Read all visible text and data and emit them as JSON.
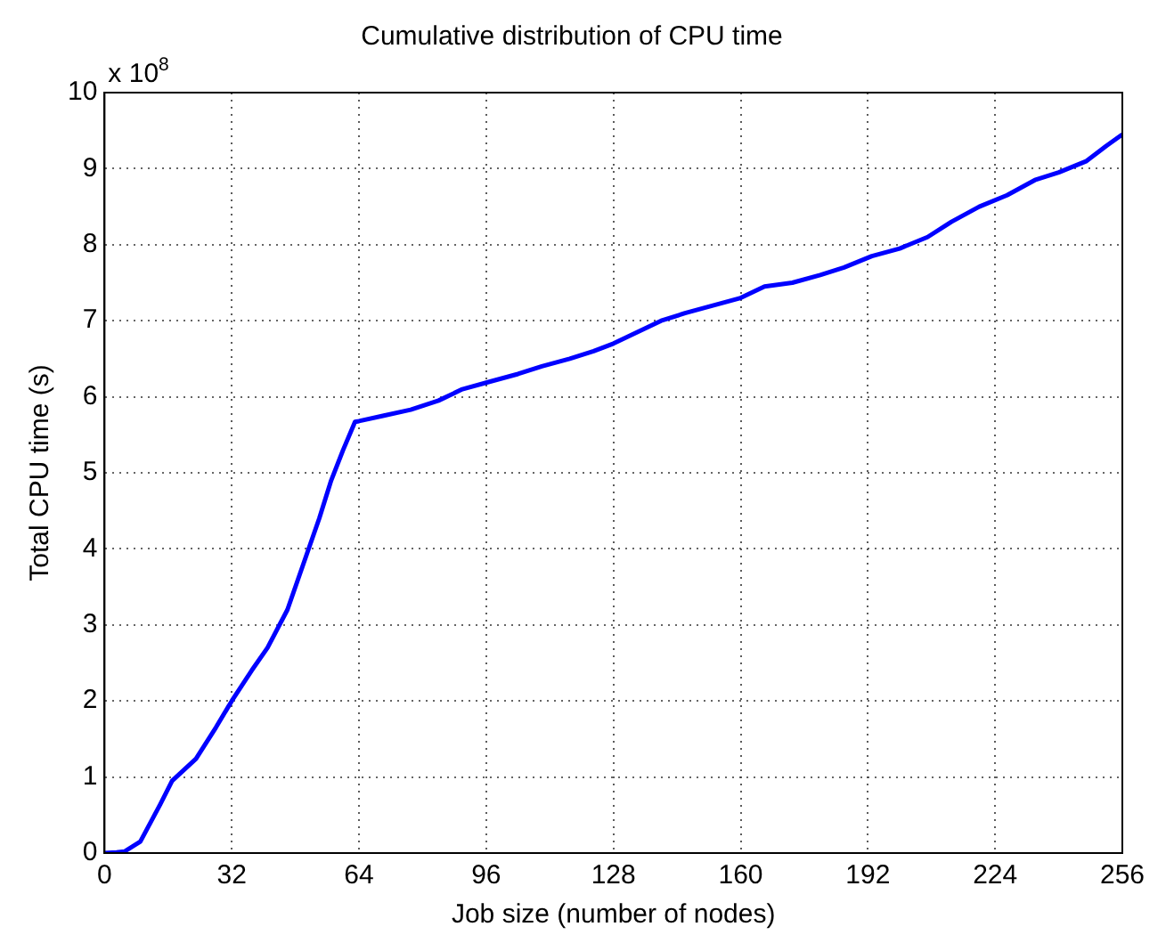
{
  "chart_data": {
    "type": "line",
    "title": "Cumulative distribution of CPU time",
    "xlabel": "Job size (number of nodes)",
    "ylabel": "Total CPU time (s)",
    "annotations": [
      "x 10$^{8}$"
    ],
    "series": [
      {
        "color": "#0000ff",
        "x": [
          0,
          3,
          5,
          9,
          14,
          17,
          23,
          28,
          32,
          37,
          41,
          46,
          50,
          54,
          57,
          60,
          63,
          64,
          70,
          77,
          84,
          90,
          97,
          104,
          110,
          117,
          123,
          128,
          134,
          140,
          146,
          153,
          160,
          166,
          173,
          180,
          186,
          193,
          200,
          207,
          213,
          220,
          227,
          234,
          240,
          247,
          252,
          256
        ],
        "values": [
          0,
          0.01,
          0.02,
          0.15,
          0.64,
          0.95,
          1.24,
          1.65,
          2.0,
          2.4,
          2.7,
          3.2,
          3.8,
          4.4,
          4.9,
          5.3,
          5.67,
          5.68,
          5.75,
          5.83,
          5.95,
          6.1,
          6.2,
          6.3,
          6.4,
          6.5,
          6.6,
          6.7,
          6.85,
          7.0,
          7.1,
          7.2,
          7.3,
          7.45,
          7.5,
          7.6,
          7.7,
          7.85,
          7.95,
          8.1,
          8.3,
          8.5,
          8.65,
          8.85,
          8.95,
          9.1,
          9.3,
          9.45
        ]
      }
    ],
    "xlim": [
      0,
      256
    ],
    "xticks": [
      0,
      32,
      64,
      96,
      128,
      160,
      192,
      224,
      256
    ],
    "ylim": [
      0,
      10
    ],
    "yticks": [
      0,
      1,
      2,
      3,
      4,
      5,
      6,
      7,
      8,
      9,
      10
    ],
    "grid": true,
    "line_style": "solid",
    "marker": "none"
  }
}
